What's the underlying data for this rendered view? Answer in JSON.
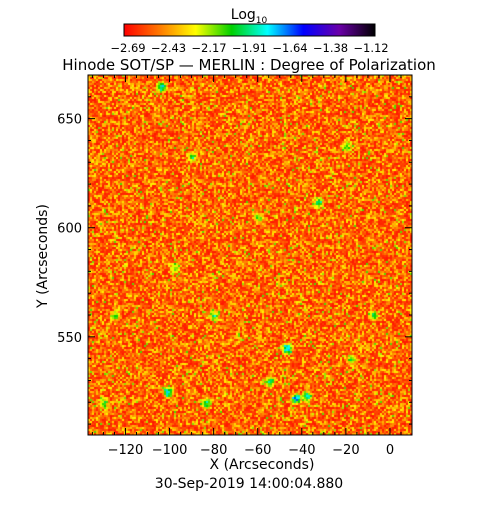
{
  "chart_data": {
    "type": "heatmap",
    "title": "Hinode SOT/SP — MERLIN : Degree of Polarization",
    "xlabel": "X (Arcseconds)",
    "ylabel": "Y (Arcseconds)",
    "timestamp": "30-Sep-2019 14:00:04.880",
    "xlim": [
      -137,
      10
    ],
    "ylim": [
      505,
      670
    ],
    "xticks": [
      -120,
      -100,
      -80,
      -60,
      -40,
      -20,
      0
    ],
    "xtick_labels": [
      "−120",
      "−100",
      "−80",
      "−60",
      "−40",
      "−20",
      "0"
    ],
    "yticks": [
      550,
      600,
      650
    ],
    "ytick_labels": [
      "550",
      "600",
      "650"
    ],
    "colorbar": {
      "title_main": "Log",
      "title_sub": "10",
      "colors": [
        "#ff0000",
        "#ff7a00",
        "#ffff00",
        "#00d000",
        "#00ffff",
        "#0000ff",
        "#6a00a8",
        "#000000"
      ],
      "ticks": [
        -2.69,
        -2.43,
        -2.17,
        -1.91,
        -1.64,
        -1.38,
        -1.12
      ],
      "tick_labels": [
        "−2.69",
        "−2.43",
        "−2.17",
        "−1.91",
        "−1.64",
        "−1.38",
        "−1.12"
      ],
      "vmin": -2.8,
      "vmax": -1.0
    },
    "field_description_values": {
      "background_range": [
        -2.75,
        -2.3
      ],
      "features": [
        {
          "x": -101,
          "y": 525,
          "level": -1.35
        },
        {
          "x": -47,
          "y": 545,
          "level": -1.25
        },
        {
          "x": -43,
          "y": 522,
          "level": -1.3
        },
        {
          "x": -38,
          "y": 523,
          "level": -1.45
        },
        {
          "x": -84,
          "y": 520,
          "level": -1.6
        },
        {
          "x": -90,
          "y": 633,
          "level": -1.7
        },
        {
          "x": -33,
          "y": 612,
          "level": -1.65
        },
        {
          "x": -104,
          "y": 665,
          "level": -1.5
        },
        {
          "x": -98,
          "y": 582,
          "level": -1.9
        },
        {
          "x": -125,
          "y": 560,
          "level": -1.8
        },
        {
          "x": -60,
          "y": 605,
          "level": -1.9
        },
        {
          "x": -80,
          "y": 560,
          "level": -1.7
        },
        {
          "x": -55,
          "y": 530,
          "level": -1.55
        },
        {
          "x": -18,
          "y": 540,
          "level": -1.8
        },
        {
          "x": -8,
          "y": 560,
          "level": -1.9
        },
        {
          "x": -20,
          "y": 638,
          "level": -1.85
        },
        {
          "x": -130,
          "y": 520,
          "level": -1.9
        }
      ]
    }
  }
}
